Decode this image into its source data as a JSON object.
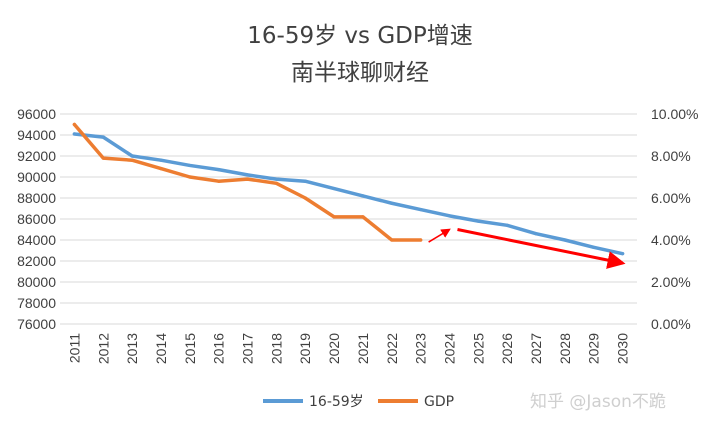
{
  "chart_data": {
    "type": "line",
    "title": "16-59岁 vs GDP增速",
    "subtitle": "南半球聊财经",
    "categories": [
      "2011",
      "2012",
      "2013",
      "2014",
      "2015",
      "2016",
      "2017",
      "2018",
      "2019",
      "2020",
      "2021",
      "2022",
      "2023",
      "2024",
      "2025",
      "2026",
      "2027",
      "2028",
      "2029",
      "2030"
    ],
    "y_left": {
      "min": 76000,
      "max": 96000,
      "step": 2000
    },
    "y_right": {
      "min": 0,
      "max": 10,
      "step": 2,
      "format": "percent"
    },
    "y_left_ticks": [
      "76000",
      "78000",
      "80000",
      "82000",
      "84000",
      "86000",
      "88000",
      "90000",
      "92000",
      "94000",
      "96000"
    ],
    "y_right_ticks": [
      "0.00%",
      "2.00%",
      "4.00%",
      "6.00%",
      "8.00%",
      "10.00%"
    ],
    "series": [
      {
        "name": "16-59岁",
        "axis": "left",
        "color": "#5b9bd5",
        "values": [
          94100,
          93800,
          92000,
          91600,
          91100,
          90700,
          90200,
          89800,
          89600,
          88900,
          88200,
          87500,
          86900,
          86300,
          85800,
          85400,
          84600,
          84000,
          83300,
          82700
        ]
      },
      {
        "name": "GDP",
        "axis": "right",
        "color": "#ed7d31",
        "values": [
          9.5,
          7.9,
          7.8,
          7.4,
          7.0,
          6.8,
          6.9,
          6.7,
          6.0,
          5.1,
          5.1,
          4.0,
          4.0,
          null,
          null,
          null,
          null,
          null,
          null,
          null
        ]
      }
    ],
    "annotations": [
      {
        "type": "arrow",
        "color": "#ff0000",
        "from": {
          "x": "2023",
          "y_pct": 3.9
        },
        "to": {
          "x": "2024",
          "y_pct": 4.5
        }
      },
      {
        "type": "arrow",
        "color": "#ff0000",
        "from": {
          "x": "2024",
          "y_pct": 4.5
        },
        "to": {
          "x": "2030",
          "y_pct": 2.9
        }
      }
    ],
    "grid": true,
    "legend_position": "bottom"
  },
  "watermark": "知乎 @Jason不跪"
}
